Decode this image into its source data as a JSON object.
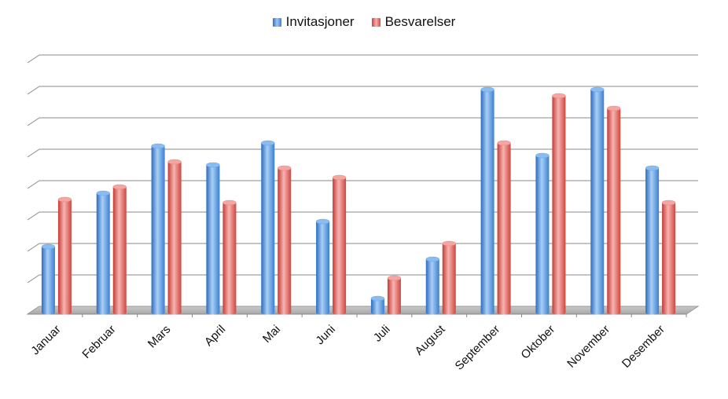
{
  "chart_data": {
    "type": "bar",
    "title": "",
    "xlabel": "",
    "ylabel": "",
    "categories": [
      "Januar",
      "Februar",
      "Mars",
      "April",
      "Mai",
      "Juni",
      "Juli",
      "August",
      "September",
      "Oktober",
      "November",
      "Desember"
    ],
    "series": [
      {
        "name": "Invitasjoner",
        "color": "#4a8fd8",
        "values": [
          2.1,
          3.8,
          5.3,
          4.7,
          5.4,
          2.9,
          0.45,
          1.7,
          7.1,
          5.0,
          7.1,
          4.6
        ]
      },
      {
        "name": "Besvarelser",
        "color": "#e05a55",
        "values": [
          3.6,
          4.0,
          4.8,
          3.5,
          4.6,
          4.3,
          1.1,
          2.2,
          5.4,
          6.9,
          6.5,
          3.5
        ]
      }
    ],
    "ylim": [
      0,
      8
    ],
    "grid": true,
    "legend_position": "top-center"
  }
}
